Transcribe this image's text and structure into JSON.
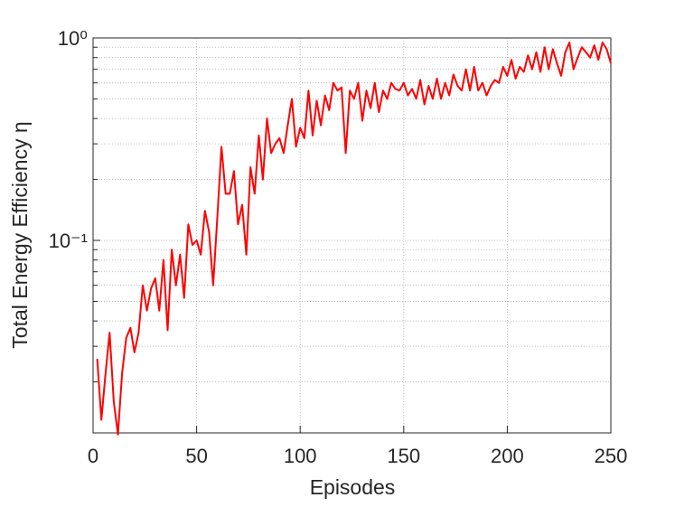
{
  "chart_data": {
    "type": "line",
    "xlabel": "Episodes",
    "ylabel": "Total Energy Efficiency η",
    "log_y": true,
    "grid": true,
    "xlim": [
      0,
      250
    ],
    "ylim": [
      0.0112,
      1
    ],
    "xticks": [
      0,
      50,
      100,
      150,
      200,
      250
    ],
    "yticks": [
      {
        "value": 0.1,
        "label": "10⁻¹"
      },
      {
        "value": 1,
        "label": "10⁰"
      }
    ],
    "yminorticks": [
      0.02,
      0.03,
      0.04,
      0.05,
      0.06,
      0.07,
      0.08,
      0.09,
      0.2,
      0.3,
      0.4,
      0.5,
      0.6,
      0.7,
      0.8,
      0.9
    ],
    "x": [
      2,
      4,
      6,
      8,
      10,
      12,
      14,
      16,
      18,
      20,
      22,
      24,
      26,
      28,
      30,
      32,
      34,
      36,
      38,
      40,
      42,
      44,
      46,
      48,
      50,
      52,
      54,
      56,
      58,
      60,
      62,
      64,
      66,
      68,
      70,
      72,
      74,
      76,
      78,
      80,
      82,
      84,
      86,
      88,
      90,
      92,
      94,
      96,
      98,
      100,
      102,
      104,
      106,
      108,
      110,
      112,
      114,
      116,
      118,
      120,
      122,
      124,
      126,
      128,
      130,
      132,
      134,
      136,
      138,
      140,
      142,
      144,
      146,
      148,
      150,
      152,
      154,
      156,
      158,
      160,
      162,
      164,
      166,
      168,
      170,
      172,
      174,
      176,
      178,
      180,
      182,
      184,
      186,
      188,
      190,
      192,
      194,
      196,
      198,
      200,
      202,
      204,
      206,
      208,
      210,
      212,
      214,
      216,
      218,
      220,
      222,
      224,
      226,
      228,
      230,
      232,
      234,
      236,
      238,
      240,
      242,
      244,
      246,
      248,
      250
    ],
    "series": [
      {
        "color": "#ff0000",
        "values": [
          0.026,
          0.013,
          0.022,
          0.035,
          0.016,
          0.011,
          0.022,
          0.033,
          0.037,
          0.028,
          0.035,
          0.06,
          0.045,
          0.058,
          0.065,
          0.045,
          0.08,
          0.036,
          0.09,
          0.06,
          0.085,
          0.052,
          0.12,
          0.095,
          0.1,
          0.085,
          0.14,
          0.11,
          0.06,
          0.13,
          0.29,
          0.17,
          0.17,
          0.22,
          0.12,
          0.15,
          0.085,
          0.23,
          0.17,
          0.33,
          0.2,
          0.4,
          0.27,
          0.3,
          0.32,
          0.27,
          0.37,
          0.5,
          0.29,
          0.36,
          0.32,
          0.55,
          0.33,
          0.49,
          0.37,
          0.52,
          0.44,
          0.6,
          0.55,
          0.57,
          0.27,
          0.55,
          0.5,
          0.6,
          0.39,
          0.55,
          0.45,
          0.6,
          0.43,
          0.55,
          0.5,
          0.6,
          0.56,
          0.55,
          0.6,
          0.52,
          0.56,
          0.5,
          0.62,
          0.47,
          0.58,
          0.5,
          0.63,
          0.5,
          0.6,
          0.52,
          0.66,
          0.58,
          0.55,
          0.7,
          0.55,
          0.72,
          0.55,
          0.6,
          0.52,
          0.58,
          0.62,
          0.6,
          0.72,
          0.65,
          0.78,
          0.63,
          0.72,
          0.68,
          0.82,
          0.7,
          0.85,
          0.68,
          0.9,
          0.7,
          0.88,
          0.75,
          0.65,
          0.85,
          0.95,
          0.7,
          0.8,
          0.9,
          0.85,
          0.8,
          0.92,
          0.78,
          0.95,
          0.88,
          0.75
        ]
      }
    ]
  }
}
